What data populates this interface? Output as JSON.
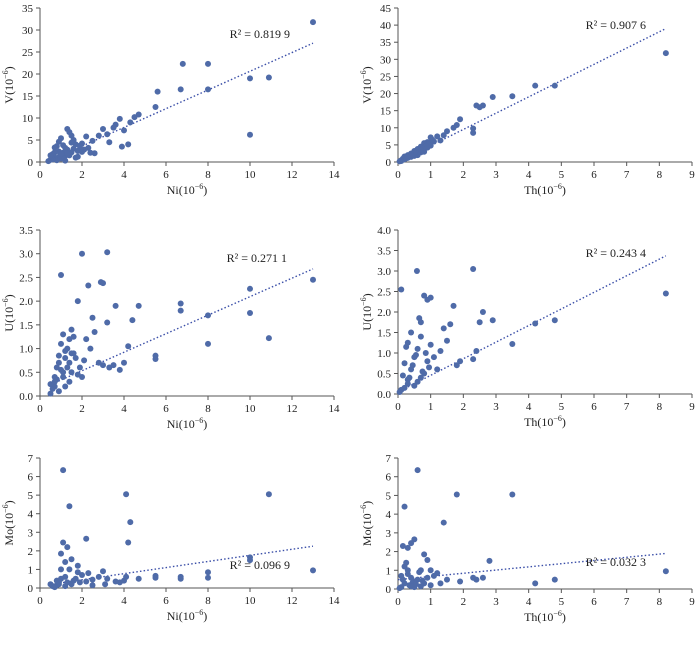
{
  "chart_data": [
    {
      "type": "scatter",
      "xlabel_main": "Ni",
      "xlabel_exp": "−6",
      "ylabel_main": "V",
      "ylabel_exp": "−6",
      "xlim": [
        0,
        14
      ],
      "ylim": [
        0,
        35
      ],
      "xticks": [
        0,
        2,
        4,
        6,
        8,
        10,
        12,
        14
      ],
      "yticks": [
        0,
        5,
        10,
        15,
        20,
        25,
        30,
        35
      ],
      "r2_label": "R² = 0.819 9",
      "trendline": {
        "x": [
          0.4,
          13
        ],
        "y": [
          0.2,
          27
        ]
      },
      "points": {
        "x": [
          13.0,
          10.9,
          10.0,
          10.0,
          8.0,
          8.0,
          6.8,
          6.7,
          5.6,
          5.5,
          4.7,
          4.5,
          4.3,
          4.2,
          4.0,
          3.8,
          3.6,
          3.5,
          3.2,
          3.0,
          2.8,
          2.5,
          2.3,
          2.1,
          2.0,
          1.9,
          1.8,
          1.7,
          1.6,
          1.5,
          1.5,
          1.4,
          1.3,
          1.3,
          1.2,
          1.2,
          1.1,
          1.0,
          1.0,
          0.9,
          0.9,
          0.8,
          0.8,
          0.7,
          0.7,
          0.6,
          0.6,
          0.5,
          0.5,
          0.4,
          1.1,
          1.4,
          1.6,
          1.9,
          2.2,
          2.6,
          3.3,
          3.9,
          1.0,
          1.2,
          0.9,
          1.8,
          2.4,
          0.7,
          1.5,
          2.0,
          1.3,
          1.7
        ],
        "y": [
          31.8,
          19.2,
          19.0,
          6.2,
          22.3,
          16.5,
          22.3,
          16.5,
          16.0,
          12.5,
          10.8,
          10.2,
          9.0,
          4.0,
          7.2,
          9.8,
          8.5,
          7.8,
          6.3,
          7.5,
          6.0,
          4.8,
          3.2,
          2.8,
          4.2,
          3.0,
          2.5,
          4.0,
          3.0,
          2.2,
          6.0,
          1.5,
          2.8,
          7.5,
          3.2,
          1.4,
          2.1,
          5.4,
          0.8,
          2.4,
          1.2,
          0.4,
          3.6,
          1.0,
          2.2,
          0.6,
          1.8,
          0.5,
          1.5,
          0.2,
          3.8,
          6.8,
          5.0,
          3.7,
          5.8,
          2.0,
          4.5,
          3.5,
          1.9,
          0.3,
          4.6,
          1.2,
          2.1,
          3.3,
          4.4,
          2.3,
          2.0,
          1.0
        ]
      }
    },
    {
      "type": "scatter",
      "xlabel_main": "Th",
      "xlabel_exp": "−6",
      "ylabel_main": "V",
      "ylabel_exp": "−6",
      "xlim": [
        0,
        9
      ],
      "ylim": [
        0,
        45
      ],
      "xticks": [
        0,
        1,
        2,
        3,
        4,
        5,
        6,
        7,
        8,
        9
      ],
      "yticks": [
        0,
        5,
        10,
        15,
        20,
        25,
        30,
        35,
        40,
        45
      ],
      "r2_label": "R² = 0.907 6",
      "trendline": {
        "x": [
          0,
          8.2
        ],
        "y": [
          0,
          39
        ]
      },
      "points": {
        "x": [
          8.2,
          4.8,
          4.2,
          3.5,
          2.9,
          2.6,
          2.5,
          2.4,
          2.3,
          2.3,
          1.9,
          1.8,
          1.7,
          1.5,
          1.4,
          1.3,
          1.2,
          1.1,
          1.0,
          1.0,
          0.9,
          0.9,
          0.8,
          0.8,
          0.7,
          0.7,
          0.6,
          0.6,
          0.5,
          0.5,
          0.4,
          0.4,
          0.3,
          0.3,
          0.2,
          0.2,
          0.15,
          0.1,
          0.1,
          0.05,
          0.95,
          0.85,
          0.75,
          0.65,
          0.55,
          0.45,
          0.35,
          0.25,
          1.05,
          0.6,
          0.5,
          0.4,
          0.7,
          0.3
        ],
        "y": [
          31.8,
          22.3,
          22.3,
          19.2,
          19.0,
          16.5,
          16.0,
          16.5,
          9.8,
          8.5,
          12.5,
          10.8,
          10.0,
          9.0,
          7.8,
          6.3,
          7.5,
          6.0,
          7.2,
          4.8,
          5.8,
          4.2,
          5.5,
          3.0,
          4.5,
          2.8,
          3.8,
          2.0,
          3.2,
          1.8,
          2.5,
          1.5,
          2.0,
          1.2,
          1.6,
          0.8,
          1.0,
          0.5,
          0.3,
          0.2,
          5.2,
          4.6,
          4.0,
          3.4,
          2.6,
          2.3,
          1.8,
          1.1,
          6.5,
          3.0,
          2.7,
          2.1,
          3.5,
          1.4
        ]
      }
    },
    {
      "type": "scatter",
      "xlabel_main": "Ni",
      "xlabel_exp": "−6",
      "ylabel_main": "U",
      "ylabel_exp": "−6",
      "xlim": [
        0,
        14
      ],
      "ylim": [
        0,
        3.5
      ],
      "xticks": [
        0,
        2,
        4,
        6,
        8,
        10,
        12,
        14
      ],
      "yticks": [
        0,
        0.5,
        1.0,
        1.5,
        2.0,
        2.5,
        3.0,
        3.5
      ],
      "ytick_labels": [
        "0.0",
        "0.5",
        "1.0",
        "1.5",
        "2.0",
        "2.5",
        "3.0",
        "3.5"
      ],
      "r2_label": "R² = 0.271 1",
      "trendline": {
        "x": [
          0.4,
          13
        ],
        "y": [
          0.22,
          2.68
        ]
      },
      "points": {
        "x": [
          13.0,
          10.9,
          10.0,
          10.0,
          8.0,
          8.0,
          6.7,
          6.7,
          5.5,
          5.5,
          4.7,
          4.4,
          4.2,
          4.0,
          3.8,
          3.6,
          3.3,
          3.2,
          3.0,
          3.0,
          2.9,
          2.8,
          2.5,
          2.3,
          2.2,
          2.0,
          2.0,
          1.9,
          1.8,
          1.7,
          1.6,
          1.5,
          1.5,
          1.4,
          1.4,
          1.3,
          1.3,
          1.2,
          1.2,
          1.1,
          1.1,
          1.0,
          1.0,
          0.9,
          0.9,
          0.8,
          0.8,
          0.7,
          0.7,
          0.6,
          0.5,
          0.5,
          1.0,
          2.6,
          3.2,
          1.6,
          2.1,
          1.2,
          0.9,
          1.8,
          2.4,
          3.5,
          1.4,
          1.1,
          0.7,
          1.5
        ],
        "y": [
          2.45,
          1.22,
          2.26,
          1.75,
          1.7,
          1.1,
          1.95,
          1.8,
          0.85,
          0.78,
          1.9,
          1.6,
          1.05,
          0.7,
          0.55,
          1.9,
          0.6,
          3.03,
          2.38,
          0.65,
          2.4,
          0.7,
          1.65,
          2.33,
          1.2,
          3.0,
          0.4,
          0.6,
          2.0,
          0.8,
          0.9,
          1.4,
          0.5,
          1.2,
          0.3,
          1.0,
          0.6,
          0.8,
          0.2,
          1.3,
          0.4,
          2.55,
          0.55,
          0.7,
          0.1,
          0.35,
          0.6,
          0.2,
          0.4,
          0.15,
          0.05,
          0.25,
          1.1,
          1.35,
          1.55,
          1.25,
          0.75,
          0.95,
          0.85,
          0.45,
          1.0,
          0.65,
          0.7,
          0.5,
          0.3,
          0.9
        ]
      }
    },
    {
      "type": "scatter",
      "xlabel_main": "Th",
      "xlabel_exp": "−6",
      "ylabel_main": "U",
      "ylabel_exp": "−6",
      "xlim": [
        0,
        9
      ],
      "ylim": [
        0,
        4.0
      ],
      "xticks": [
        0,
        1,
        2,
        3,
        4,
        5,
        6,
        7,
        8,
        9
      ],
      "yticks": [
        0,
        0.5,
        1.0,
        1.5,
        2.0,
        2.5,
        3.0,
        3.5,
        4.0
      ],
      "ytick_labels": [
        "0.0",
        "0.5",
        "1.0",
        "1.5",
        "2.0",
        "2.5",
        "3.0",
        "3.5",
        "4.0"
      ],
      "r2_label": "R² = 0.243 4",
      "trendline": {
        "x": [
          0,
          8.2
        ],
        "y": [
          0.05,
          3.37
        ]
      },
      "points": {
        "x": [
          8.2,
          4.8,
          4.2,
          3.5,
          2.9,
          2.6,
          2.5,
          2.4,
          2.3,
          2.3,
          1.9,
          1.8,
          1.7,
          1.5,
          1.4,
          1.3,
          1.2,
          1.1,
          1.0,
          1.0,
          0.9,
          0.9,
          0.8,
          0.8,
          0.7,
          0.7,
          0.6,
          0.6,
          0.5,
          0.5,
          0.4,
          0.4,
          0.3,
          0.3,
          0.2,
          0.2,
          0.15,
          0.1,
          0.1,
          0.05,
          0.95,
          0.85,
          0.75,
          0.65,
          0.55,
          0.45,
          0.35,
          0.25,
          0.58,
          0.7,
          0.3,
          1.6
        ],
        "y": [
          2.45,
          1.8,
          1.72,
          1.22,
          1.8,
          2.0,
          1.75,
          1.05,
          3.05,
          0.85,
          0.8,
          0.7,
          2.15,
          1.3,
          1.6,
          1.05,
          0.6,
          0.9,
          2.35,
          1.2,
          2.3,
          0.8,
          2.4,
          0.5,
          1.75,
          0.4,
          0.3,
          1.1,
          0.9,
          0.2,
          1.5,
          0.6,
          0.35,
          1.25,
          0.15,
          0.75,
          0.45,
          2.55,
          0.1,
          0.05,
          0.65,
          1.0,
          0.55,
          1.85,
          0.95,
          0.7,
          0.4,
          1.15,
          3.0,
          1.4,
          0.25,
          1.7
        ]
      }
    },
    {
      "type": "scatter",
      "xlabel_main": "Ni",
      "xlabel_exp": "−6",
      "ylabel_main": "Mo",
      "ylabel_exp": "−6",
      "xlim": [
        0,
        14
      ],
      "ylim": [
        0,
        7
      ],
      "xticks": [
        0,
        2,
        4,
        6,
        8,
        10,
        12,
        14
      ],
      "yticks": [
        0,
        1,
        2,
        3,
        4,
        5,
        6,
        7
      ],
      "r2_label": "R² = 0.096 9",
      "trendline": {
        "x": [
          0.4,
          13
        ],
        "y": [
          0.18,
          2.25
        ]
      },
      "points": {
        "x": [
          1.1,
          1.4,
          4.1,
          4.3,
          10.9,
          13.0,
          10.0,
          10.0,
          8.0,
          8.0,
          6.7,
          6.7,
          5.5,
          5.5,
          4.7,
          4.2,
          4.0,
          3.8,
          3.6,
          3.2,
          3.0,
          2.8,
          2.5,
          2.3,
          2.2,
          2.0,
          1.9,
          1.8,
          1.7,
          1.6,
          1.5,
          1.5,
          1.4,
          1.3,
          1.3,
          1.2,
          1.2,
          1.1,
          1.0,
          1.0,
          0.9,
          0.9,
          0.8,
          0.8,
          0.7,
          0.6,
          0.5,
          2.2,
          1.2,
          1.0,
          1.5,
          3.1,
          1.8,
          2.5,
          4.1,
          0.9
        ],
        "y": [
          6.35,
          4.4,
          5.05,
          3.55,
          5.05,
          0.95,
          1.65,
          1.5,
          0.85,
          0.55,
          0.6,
          0.5,
          0.65,
          0.55,
          0.5,
          2.45,
          0.4,
          0.3,
          0.35,
          0.5,
          0.9,
          0.6,
          0.45,
          0.8,
          2.65,
          0.7,
          0.3,
          1.2,
          0.5,
          0.4,
          1.55,
          0.2,
          1.0,
          0.3,
          2.2,
          0.6,
          0.1,
          2.45,
          0.5,
          1.0,
          0.2,
          0.35,
          0.4,
          0.15,
          0.05,
          0.1,
          0.2,
          0.35,
          1.4,
          1.85,
          0.25,
          0.2,
          0.85,
          0.15,
          0.6,
          0.3
        ]
      }
    },
    {
      "type": "scatter",
      "xlabel_main": "Th",
      "xlabel_exp": "−6",
      "ylabel_main": "Mo",
      "ylabel_exp": "−6",
      "xlim": [
        0,
        9
      ],
      "ylim": [
        0,
        7
      ],
      "xticks": [
        0,
        1,
        2,
        3,
        4,
        5,
        6,
        7,
        8,
        9
      ],
      "yticks": [
        0,
        1,
        2,
        3,
        4,
        5,
        6,
        7
      ],
      "r2_label": "R² = 0.032 3",
      "trendline": {
        "x": [
          0,
          8.2
        ],
        "y": [
          0.5,
          1.9
        ]
      },
      "points": {
        "x": [
          0.6,
          0.2,
          1.8,
          3.5,
          1.4,
          8.2,
          2.8,
          2.4,
          4.2,
          4.8,
          2.6,
          2.3,
          1.9,
          1.5,
          1.3,
          1.1,
          1.0,
          1.0,
          0.9,
          0.8,
          0.8,
          0.7,
          0.7,
          0.6,
          0.5,
          0.5,
          0.4,
          0.4,
          0.3,
          0.3,
          0.25,
          0.2,
          0.2,
          0.15,
          0.1,
          0.1,
          0.05,
          0.9,
          0.45,
          0.35,
          0.55,
          0.65,
          0.75,
          0.3,
          0.5,
          0.15,
          1.2,
          0.4
        ],
        "y": [
          6.35,
          4.4,
          5.05,
          5.05,
          3.55,
          0.95,
          1.5,
          0.5,
          0.3,
          0.5,
          0.6,
          0.6,
          0.4,
          0.5,
          0.3,
          0.7,
          1.0,
          0.2,
          0.6,
          1.85,
          0.3,
          1.0,
          0.15,
          0.5,
          2.65,
          0.4,
          2.45,
          0.6,
          2.2,
          0.8,
          1.4,
          0.3,
          1.2,
          0.5,
          0.1,
          0.7,
          0.05,
          1.55,
          0.35,
          0.2,
          0.25,
          0.9,
          0.45,
          1.0,
          0.1,
          2.3,
          0.85,
          0.15
        ]
      }
    }
  ]
}
